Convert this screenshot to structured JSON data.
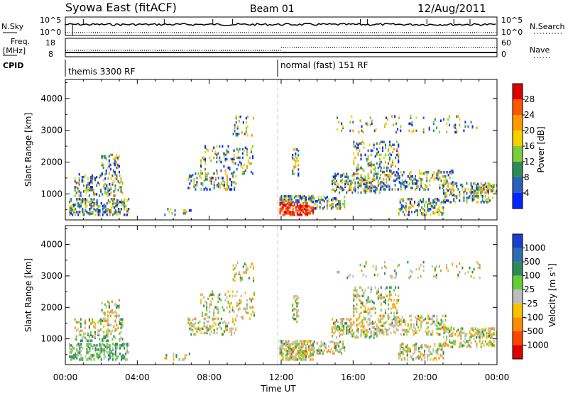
{
  "header": {
    "title": "Syowa East (fitACF)",
    "beam": "Beam 01",
    "date": "12/Aug/2011"
  },
  "sky_panel": {
    "left_label": "N.Sky",
    "right_label": "N.Search",
    "left_ticks": [
      "10^5",
      "10^0"
    ],
    "right_ticks": [
      "10^5",
      "10^0"
    ]
  },
  "freq_panel": {
    "left_label_1": "Freq.",
    "left_label_2": "[MHz]",
    "right_label": "Nave",
    "left_ticks": [
      "18",
      "8"
    ],
    "right_ticks": [
      "60",
      "0"
    ]
  },
  "cpid": {
    "label": "CPID",
    "mode_1": "themis 3300 RF",
    "mode_2": "normal (fast) 151 RF",
    "switch_hour": 12
  },
  "chart_data": [
    {
      "type": "heatmap",
      "title": "",
      "xlabel": "Time UT",
      "ylabel": "Slant Range [km]",
      "xlim": [
        0,
        24
      ],
      "ylim": [
        180,
        4600
      ],
      "xticks": [
        "00:00",
        "04:00",
        "08:00",
        "12:00",
        "16:00",
        "20:00",
        "00:00"
      ],
      "yticks": [
        1000,
        2000,
        3000,
        4000
      ],
      "colorbar": {
        "label": "Power [dB]",
        "ticks": [
          "4",
          "8",
          "12",
          "16",
          "20",
          "24",
          "28"
        ],
        "colors": [
          "#0026ff",
          "#2b5fbe",
          "#2e8b57",
          "#7ccd3a",
          "#f5d100",
          "#ff9a00",
          "#ff5500",
          "#dd0000"
        ]
      }
    },
    {
      "type": "heatmap",
      "title": "",
      "xlabel": "Time UT",
      "ylabel": "Slant Range [km]",
      "xlim": [
        0,
        24
      ],
      "ylim": [
        180,
        4600
      ],
      "xticks": [
        "00:00",
        "04:00",
        "08:00",
        "12:00",
        "16:00",
        "20:00",
        "00:00"
      ],
      "yticks": [
        1000,
        2000,
        3000,
        4000
      ],
      "colorbar": {
        "label": "Velocity [m s^-1]",
        "ticks": [
          "1000",
          "500",
          "100",
          "25",
          "-25",
          "-100",
          "-500",
          "-1000"
        ],
        "colors": [
          "#1a3fcc",
          "#2b6fb0",
          "#2e8b57",
          "#66cc33",
          "#bdbdbd",
          "#f5c200",
          "#ff8c00",
          "#ff4400",
          "#dd0000"
        ]
      }
    }
  ],
  "xaxis": {
    "label": "Time UT",
    "ticks": [
      "00:00",
      "04:00",
      "08:00",
      "12:00",
      "16:00",
      "20:00",
      "00:00"
    ]
  }
}
